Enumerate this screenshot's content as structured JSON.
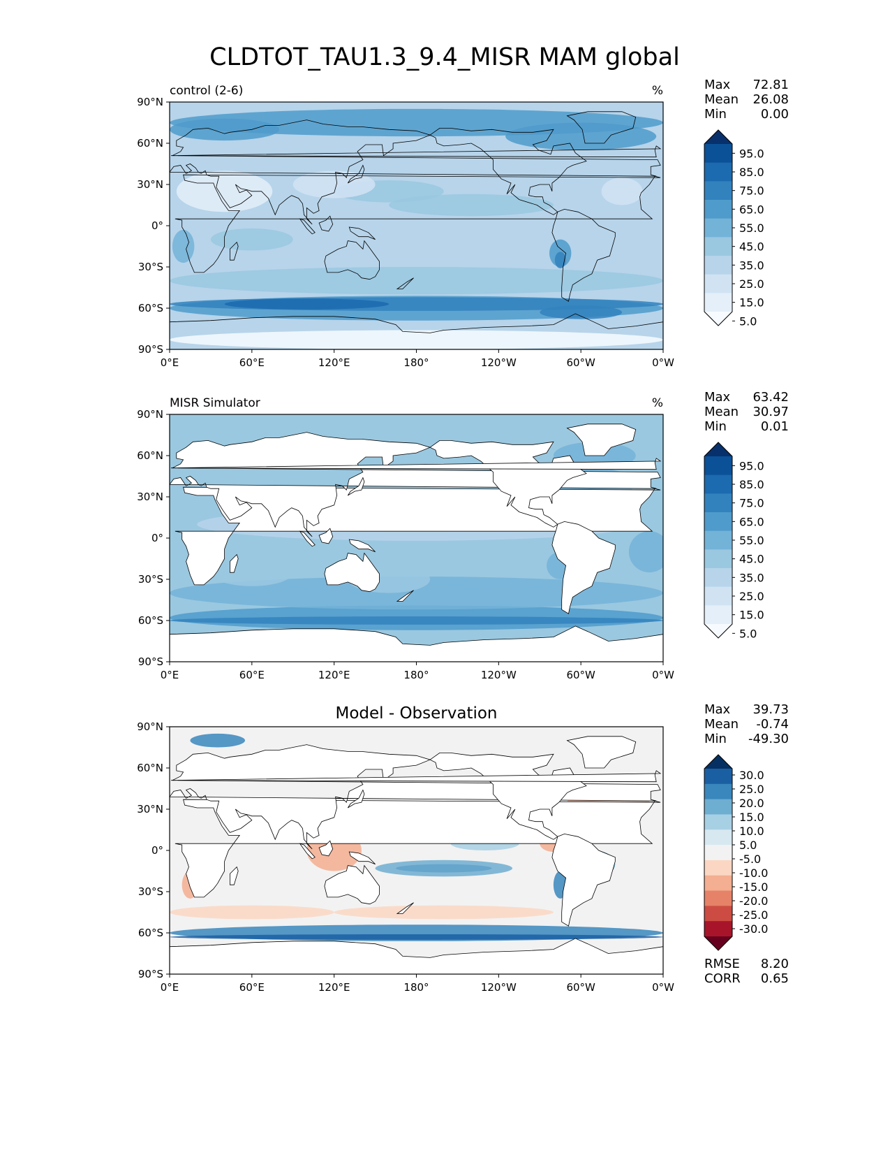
{
  "title": "CLDTOT_TAU1.3_9.4_MISR MAM global",
  "x_ticks": [
    "0°E",
    "60°E",
    "120°E",
    "180°",
    "120°W",
    "60°W",
    "0°W"
  ],
  "y_ticks": [
    "90°N",
    "60°N",
    "30°N",
    "0°",
    "30°S",
    "60°S",
    "90°S"
  ],
  "panels": [
    {
      "name": "control",
      "left_title": "control (2-6)",
      "center_title": "",
      "units": "%",
      "stats": {
        "Max": "72.81",
        "Mean": "26.08",
        "Min": "0.00"
      },
      "colorbar_labels": [
        "95.0",
        "85.0",
        "75.0",
        "65.0",
        "55.0",
        "45.0",
        "35.0",
        "25.0",
        "15.0",
        "5.0"
      ],
      "footer_stats": []
    },
    {
      "name": "misr",
      "left_title": "MISR Simulator",
      "center_title": "",
      "units": "%",
      "stats": {
        "Max": "63.42",
        "Mean": "30.97",
        "Min": "0.01"
      },
      "colorbar_labels": [
        "95.0",
        "85.0",
        "75.0",
        "65.0",
        "55.0",
        "45.0",
        "35.0",
        "25.0",
        "15.0",
        "5.0"
      ],
      "footer_stats": []
    },
    {
      "name": "diff",
      "left_title": "",
      "center_title": "Model - Observation",
      "units": "",
      "stats": {
        "Max": "39.73",
        "Mean": "-0.74",
        "Min": "-49.30"
      },
      "colorbar_labels": [
        "30.0",
        "25.0",
        "20.0",
        "15.0",
        "10.0",
        "5.0",
        "-5.0",
        "-10.0",
        "-15.0",
        "-20.0",
        "-25.0",
        "-30.0"
      ],
      "footer_stats": [
        {
          "label": "RMSE",
          "value": "8.20"
        },
        {
          "label": "CORR",
          "value": "0.65"
        }
      ]
    }
  ],
  "colors": {
    "blues": [
      "#f7fbff",
      "#e4eff9",
      "#d1e3f3",
      "#b7d4ea",
      "#9ac8e0",
      "#74b3d8",
      "#4f9bcb",
      "#3282be",
      "#1c6aaf",
      "#0b5198",
      "#08306b"
    ],
    "diverging": [
      "#67001f",
      "#a8152a",
      "#cc4c43",
      "#e58268",
      "#f4ae91",
      "#fbd7c3",
      "#f2f2f2",
      "#d7e8f1",
      "#a8d0e4",
      "#6eaed1",
      "#3a87bd",
      "#1b5fa3",
      "#053061"
    ],
    "land": "#ffffff",
    "coast": "#000000"
  }
}
